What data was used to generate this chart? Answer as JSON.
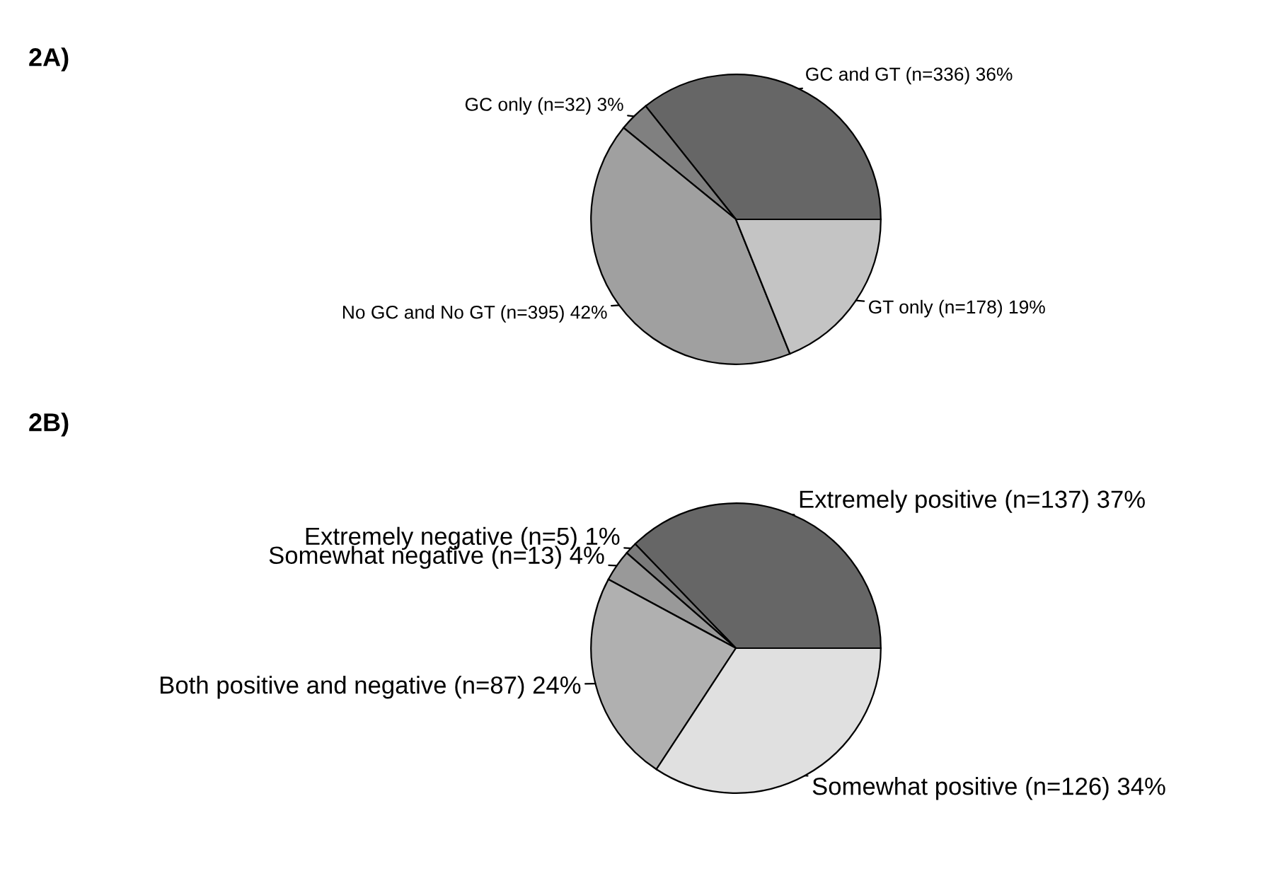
{
  "chart_data": [
    {
      "type": "pie",
      "title": "2A)",
      "categories": [
        "GC and GT (n=336) 36%",
        "GC only (n=32) 3%",
        "No GC and No GT (n=395) 42%",
        "GT only (n=178) 19%"
      ],
      "values": [
        336,
        32,
        395,
        178
      ],
      "colors": [
        "#666666",
        "#808080",
        "#a0a0a0",
        "#c4c4c4"
      ]
    },
    {
      "type": "pie",
      "title": "2B)",
      "categories": [
        "Extremely positive (n=137) 37%",
        "Extremely negative (n=5) 1%",
        "Somewhat negative (n=13) 4%",
        "Both positive and negative (n=87) 24%",
        "Somewhat positive (n=126) 34%"
      ],
      "values": [
        137,
        5,
        13,
        87,
        126
      ],
      "colors": [
        "#666666",
        "#7a7a7a",
        "#999999",
        "#b0b0b0",
        "#e0e0e0"
      ]
    }
  ]
}
